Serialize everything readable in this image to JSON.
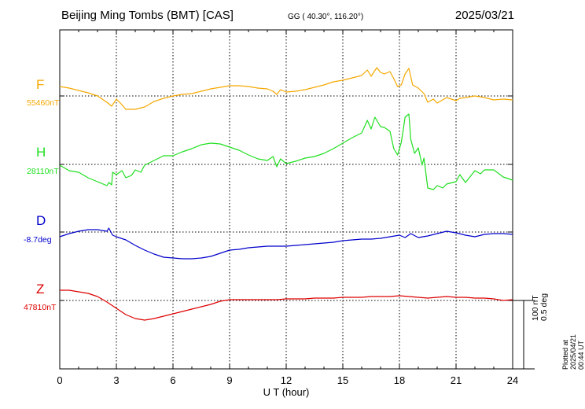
{
  "header": {
    "title": "Beijing Ming Tombs (BMT)  [CAS]",
    "coords": "GG ( 40.30°, 116.20°)",
    "date": "2025/03/21"
  },
  "scale_note": {
    "line1": "100 nT",
    "line2": "0.5 deg"
  },
  "plotted_note": "Plotted at 2025/04/21 00:44 UT",
  "chart_data": {
    "type": "line",
    "xlabel": "U T (hour)",
    "xlim": [
      0,
      24
    ],
    "x_ticks": [
      "0",
      "3",
      "6",
      "9",
      "12",
      "15",
      "18",
      "21",
      "24"
    ],
    "grid": true,
    "series": [
      {
        "name": "F",
        "baseline_label": "55460nT",
        "color": "#f5a800",
        "points": [
          [
            0,
            12
          ],
          [
            0.5,
            10
          ],
          [
            1,
            7
          ],
          [
            1.5,
            4
          ],
          [
            2,
            0
          ],
          [
            2.5,
            -8
          ],
          [
            2.75,
            -13
          ],
          [
            3,
            -4
          ],
          [
            3.25,
            -10
          ],
          [
            3.5,
            -17
          ],
          [
            4,
            -17
          ],
          [
            4.5,
            -14
          ],
          [
            5,
            -7
          ],
          [
            5.5,
            -3
          ],
          [
            6,
            0
          ],
          [
            6.5,
            2
          ],
          [
            7,
            3
          ],
          [
            7.5,
            6
          ],
          [
            8,
            9
          ],
          [
            8.5,
            11
          ],
          [
            9,
            13
          ],
          [
            9.5,
            13
          ],
          [
            10,
            12
          ],
          [
            10.5,
            10
          ],
          [
            11,
            9
          ],
          [
            11.3,
            6
          ],
          [
            11.5,
            2
          ],
          [
            11.7,
            8
          ],
          [
            12,
            5
          ],
          [
            12.5,
            6
          ],
          [
            13,
            8
          ],
          [
            13.5,
            11
          ],
          [
            14,
            14
          ],
          [
            14.5,
            18
          ],
          [
            15,
            20
          ],
          [
            15.5,
            23
          ],
          [
            16,
            26
          ],
          [
            16.3,
            33
          ],
          [
            16.5,
            25
          ],
          [
            16.8,
            36
          ],
          [
            17,
            30
          ],
          [
            17.2,
            28
          ],
          [
            17.5,
            31
          ],
          [
            17.7,
            22
          ],
          [
            17.9,
            12
          ],
          [
            18.1,
            14
          ],
          [
            18.3,
            28
          ],
          [
            18.5,
            35
          ],
          [
            18.7,
            14
          ],
          [
            19,
            10
          ],
          [
            19.3,
            3
          ],
          [
            19.5,
            -8
          ],
          [
            19.8,
            -4
          ],
          [
            20,
            -9
          ],
          [
            20.5,
            -2
          ],
          [
            21,
            -6
          ],
          [
            21.2,
            -3
          ],
          [
            21.5,
            -2
          ],
          [
            22,
            0
          ],
          [
            22.5,
            -2
          ],
          [
            23,
            -5
          ],
          [
            23.5,
            -4
          ],
          [
            24,
            -5
          ]
        ]
      },
      {
        "name": "H",
        "baseline_label": "28110nT",
        "color": "#1fdf1f",
        "points": [
          [
            0,
            -1
          ],
          [
            0.5,
            -8
          ],
          [
            1,
            -10
          ],
          [
            1.5,
            -17
          ],
          [
            2,
            -22
          ],
          [
            2.5,
            -27
          ],
          [
            2.6,
            -23
          ],
          [
            2.75,
            -26
          ],
          [
            2.8,
            -10
          ],
          [
            3,
            -13
          ],
          [
            3.3,
            -8
          ],
          [
            3.5,
            -17
          ],
          [
            3.8,
            -14
          ],
          [
            4,
            -7
          ],
          [
            4.3,
            -10
          ],
          [
            4.5,
            -1
          ],
          [
            5,
            5
          ],
          [
            5.5,
            11
          ],
          [
            6,
            11
          ],
          [
            6.5,
            16
          ],
          [
            7,
            20
          ],
          [
            7.5,
            25
          ],
          [
            8,
            27
          ],
          [
            8.5,
            26
          ],
          [
            9,
            22
          ],
          [
            9.5,
            18
          ],
          [
            10,
            12
          ],
          [
            10.5,
            7
          ],
          [
            11,
            5
          ],
          [
            11.3,
            10
          ],
          [
            11.5,
            -3
          ],
          [
            11.7,
            7
          ],
          [
            12,
            1
          ],
          [
            12.5,
            4
          ],
          [
            13,
            8
          ],
          [
            13.5,
            10
          ],
          [
            14,
            14
          ],
          [
            14.5,
            20
          ],
          [
            15,
            27
          ],
          [
            15.5,
            34
          ],
          [
            16,
            40
          ],
          [
            16.3,
            56
          ],
          [
            16.5,
            45
          ],
          [
            16.7,
            60
          ],
          [
            17,
            48
          ],
          [
            17.2,
            47
          ],
          [
            17.5,
            42
          ],
          [
            17.7,
            20
          ],
          [
            17.9,
            12
          ],
          [
            18.1,
            28
          ],
          [
            18.3,
            60
          ],
          [
            18.5,
            64
          ],
          [
            18.6,
            32
          ],
          [
            18.8,
            14
          ],
          [
            19,
            21
          ],
          [
            19.2,
            -1
          ],
          [
            19.3,
            8
          ],
          [
            19.5,
            -30
          ],
          [
            19.8,
            -32
          ],
          [
            20,
            -27
          ],
          [
            20.3,
            -30
          ],
          [
            20.5,
            -25
          ],
          [
            21,
            -22
          ],
          [
            21.2,
            -13
          ],
          [
            21.5,
            -23
          ],
          [
            22,
            -8
          ],
          [
            22.3,
            -12
          ],
          [
            22.5,
            -7
          ],
          [
            23,
            -7
          ],
          [
            23.5,
            -16
          ],
          [
            24,
            -20
          ]
        ]
      },
      {
        "name": "D",
        "baseline_label": "-8.7deg",
        "color": "#0000cc",
        "points": [
          [
            0,
            -6
          ],
          [
            0.5,
            -2
          ],
          [
            1,
            1
          ],
          [
            1.5,
            3
          ],
          [
            2,
            3
          ],
          [
            2.5,
            1
          ],
          [
            2.6,
            5
          ],
          [
            2.8,
            -4
          ],
          [
            3,
            -6
          ],
          [
            3.5,
            -10
          ],
          [
            4,
            -17
          ],
          [
            4.5,
            -23
          ],
          [
            5,
            -28
          ],
          [
            5.5,
            -32
          ],
          [
            6,
            -33
          ],
          [
            6.5,
            -34
          ],
          [
            7,
            -34
          ],
          [
            7.5,
            -33
          ],
          [
            8,
            -31
          ],
          [
            8.5,
            -27
          ],
          [
            9,
            -23
          ],
          [
            9.5,
            -22
          ],
          [
            10,
            -20
          ],
          [
            10.5,
            -19
          ],
          [
            11,
            -18
          ],
          [
            11.5,
            -18
          ],
          [
            12,
            -18
          ],
          [
            12.5,
            -17
          ],
          [
            13,
            -16
          ],
          [
            13.5,
            -15
          ],
          [
            14,
            -14
          ],
          [
            14.5,
            -13
          ],
          [
            15,
            -11
          ],
          [
            15.5,
            -10
          ],
          [
            16,
            -9
          ],
          [
            16.5,
            -9
          ],
          [
            17,
            -8
          ],
          [
            17.5,
            -6
          ],
          [
            18,
            -4
          ],
          [
            18.3,
            -7
          ],
          [
            18.6,
            -2
          ],
          [
            19,
            -7
          ],
          [
            19.5,
            -5
          ],
          [
            20,
            -2
          ],
          [
            20.5,
            1
          ],
          [
            21,
            -1
          ],
          [
            21.5,
            -4
          ],
          [
            22,
            -6
          ],
          [
            22.5,
            -3
          ],
          [
            23,
            -2
          ],
          [
            23.5,
            -2
          ],
          [
            24,
            -3
          ]
        ]
      },
      {
        "name": "Z",
        "baseline_label": "47810nT",
        "color": "#dd0000",
        "points": [
          [
            0,
            13
          ],
          [
            0.5,
            13
          ],
          [
            1,
            11
          ],
          [
            1.5,
            9
          ],
          [
            2,
            5
          ],
          [
            2.5,
            -2
          ],
          [
            3,
            -10
          ],
          [
            3.5,
            -18
          ],
          [
            4,
            -23
          ],
          [
            4.5,
            -25
          ],
          [
            5,
            -23
          ],
          [
            5.5,
            -20
          ],
          [
            6,
            -17
          ],
          [
            6.5,
            -14
          ],
          [
            7,
            -11
          ],
          [
            7.5,
            -8
          ],
          [
            8,
            -5
          ],
          [
            8.5,
            -1
          ],
          [
            9,
            1
          ],
          [
            9.5,
            1
          ],
          [
            10,
            1
          ],
          [
            10.5,
            1
          ],
          [
            11,
            1
          ],
          [
            11.5,
            1
          ],
          [
            12,
            2
          ],
          [
            12.5,
            2
          ],
          [
            13,
            2
          ],
          [
            13.5,
            3
          ],
          [
            14,
            3
          ],
          [
            14.5,
            3
          ],
          [
            15,
            4
          ],
          [
            15.5,
            4
          ],
          [
            16,
            4
          ],
          [
            16.5,
            5
          ],
          [
            17,
            5
          ],
          [
            17.5,
            5
          ],
          [
            18,
            6
          ],
          [
            18.5,
            5
          ],
          [
            19,
            4
          ],
          [
            19.5,
            3
          ],
          [
            20,
            4
          ],
          [
            20.5,
            5
          ],
          [
            21,
            4
          ],
          [
            21.5,
            4
          ],
          [
            22,
            3
          ],
          [
            22.5,
            3
          ],
          [
            23,
            2
          ],
          [
            23.5,
            0
          ],
          [
            24,
            1
          ]
        ]
      }
    ]
  }
}
